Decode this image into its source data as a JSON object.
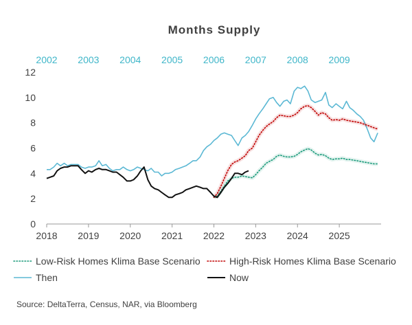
{
  "chart_data": {
    "type": "line",
    "title": "Months Supply",
    "source": "Source: DeltaTerra, Census, NAR, via Bloomberg",
    "ylim": [
      0,
      12
    ],
    "yticks": [
      "0",
      "2",
      "4",
      "6",
      "8",
      "10",
      "12"
    ],
    "xlim": [
      2018,
      2026
    ],
    "xticks": [
      "2018",
      "2019",
      "2020",
      "2021",
      "2022",
      "2023",
      "2024",
      "2025"
    ],
    "top_xticks": [
      "2002",
      "2003",
      "2004",
      "2005",
      "2006",
      "2007",
      "2008",
      "2009"
    ],
    "legend_placement": "bottom",
    "grid": false,
    "colors": {
      "then": "#5bb8d4",
      "low_risk": "#1a9a7a",
      "high_risk": "#c00000",
      "now": "#111111",
      "axis": "#999999",
      "top_axis": "#3fb6c9"
    },
    "series": [
      {
        "name": "Low-Risk Homes Klima Base Scenario",
        "key": "low_risk",
        "style": "dotted",
        "x": [
          2022.0,
          2022.08,
          2022.17,
          2022.25,
          2022.33,
          2022.42,
          2022.5,
          2022.58,
          2022.67,
          2022.75,
          2022.83,
          2022.92,
          2023.0,
          2023.08,
          2023.17,
          2023.25,
          2023.33,
          2023.42,
          2023.5,
          2023.58,
          2023.67,
          2023.75,
          2023.83,
          2023.92,
          2024.0,
          2024.08,
          2024.17,
          2024.25,
          2024.33,
          2024.42,
          2024.5,
          2024.58,
          2024.67,
          2024.75,
          2024.83,
          2024.92,
          2025.0,
          2025.08,
          2025.17,
          2025.25,
          2025.33,
          2025.42,
          2025.5,
          2025.58,
          2025.67,
          2025.75,
          2025.83,
          2025.92
        ],
        "y": [
          2.1,
          2.2,
          2.6,
          3.0,
          3.4,
          3.6,
          3.7,
          3.7,
          3.8,
          3.75,
          3.7,
          3.65,
          3.9,
          4.2,
          4.5,
          4.8,
          4.95,
          5.1,
          5.35,
          5.45,
          5.35,
          5.3,
          5.3,
          5.35,
          5.5,
          5.7,
          5.85,
          5.95,
          5.85,
          5.6,
          5.45,
          5.5,
          5.4,
          5.2,
          5.1,
          5.15,
          5.15,
          5.2,
          5.1,
          5.1,
          5.05,
          5.0,
          4.95,
          4.9,
          4.85,
          4.8,
          4.75,
          4.75
        ]
      },
      {
        "name": "High-Risk Homes Klima Base Scenario",
        "key": "high_risk",
        "style": "dotted",
        "x": [
          2022.0,
          2022.08,
          2022.17,
          2022.25,
          2022.33,
          2022.42,
          2022.5,
          2022.58,
          2022.67,
          2022.75,
          2022.83,
          2022.92,
          2023.0,
          2023.08,
          2023.17,
          2023.25,
          2023.33,
          2023.42,
          2023.5,
          2023.58,
          2023.67,
          2023.75,
          2023.83,
          2023.92,
          2024.0,
          2024.08,
          2024.17,
          2024.25,
          2024.33,
          2024.42,
          2024.5,
          2024.58,
          2024.67,
          2024.75,
          2024.83,
          2024.92,
          2025.0,
          2025.08,
          2025.17,
          2025.25,
          2025.33,
          2025.42,
          2025.5,
          2025.58,
          2025.67,
          2025.75,
          2025.83,
          2025.92
        ],
        "y": [
          2.1,
          2.4,
          3.0,
          3.6,
          4.2,
          4.7,
          4.9,
          5.0,
          5.2,
          5.4,
          5.8,
          6.0,
          6.5,
          7.0,
          7.4,
          7.7,
          7.9,
          8.1,
          8.4,
          8.6,
          8.55,
          8.5,
          8.5,
          8.6,
          8.8,
          9.1,
          9.3,
          9.35,
          9.2,
          8.9,
          8.6,
          8.8,
          8.7,
          8.4,
          8.2,
          8.25,
          8.2,
          8.3,
          8.2,
          8.15,
          8.1,
          8.05,
          8.0,
          7.9,
          7.8,
          7.7,
          7.6,
          7.5
        ]
      },
      {
        "name": "Then",
        "key": "then",
        "style": "solid",
        "x": [
          2018.0,
          2018.08,
          2018.17,
          2018.25,
          2018.33,
          2018.42,
          2018.5,
          2018.58,
          2018.67,
          2018.75,
          2018.83,
          2018.92,
          2019.0,
          2019.08,
          2019.17,
          2019.25,
          2019.33,
          2019.42,
          2019.5,
          2019.58,
          2019.67,
          2019.75,
          2019.83,
          2019.92,
          2020.0,
          2020.08,
          2020.17,
          2020.25,
          2020.33,
          2020.42,
          2020.5,
          2020.58,
          2020.67,
          2020.75,
          2020.83,
          2020.92,
          2021.0,
          2021.08,
          2021.17,
          2021.25,
          2021.33,
          2021.42,
          2021.5,
          2021.58,
          2021.67,
          2021.75,
          2021.83,
          2021.92,
          2022.0,
          2022.08,
          2022.17,
          2022.25,
          2022.33,
          2022.42,
          2022.5,
          2022.58,
          2022.67,
          2022.75,
          2022.83,
          2022.92,
          2023.0,
          2023.08,
          2023.17,
          2023.25,
          2023.33,
          2023.42,
          2023.5,
          2023.58,
          2023.67,
          2023.75,
          2023.83,
          2023.92,
          2024.0,
          2024.08,
          2024.17,
          2024.25,
          2024.33,
          2024.42,
          2024.5,
          2024.58,
          2024.67,
          2024.75,
          2024.83,
          2024.92,
          2025.0,
          2025.08,
          2025.17,
          2025.25,
          2025.33,
          2025.42,
          2025.5,
          2025.58,
          2025.67,
          2025.75,
          2025.83,
          2025.92
        ],
        "y": [
          4.3,
          4.3,
          4.5,
          4.8,
          4.6,
          4.8,
          4.6,
          4.7,
          4.7,
          4.7,
          4.5,
          4.4,
          4.5,
          4.5,
          4.6,
          5.0,
          4.6,
          4.7,
          4.4,
          4.2,
          4.3,
          4.3,
          4.5,
          4.3,
          4.2,
          4.3,
          4.5,
          4.4,
          4.3,
          4.2,
          4.4,
          4.1,
          4.1,
          3.8,
          4.0,
          4.0,
          4.1,
          4.3,
          4.4,
          4.5,
          4.6,
          4.8,
          5.0,
          5.0,
          5.3,
          5.8,
          6.1,
          6.3,
          6.6,
          6.8,
          7.1,
          7.2,
          7.1,
          7.0,
          6.6,
          6.2,
          6.8,
          7.0,
          7.3,
          7.8,
          8.3,
          8.7,
          9.1,
          9.5,
          9.9,
          10.0,
          9.6,
          9.3,
          9.7,
          9.8,
          9.5,
          10.5,
          10.8,
          10.7,
          10.9,
          10.5,
          9.8,
          9.6,
          9.7,
          9.8,
          10.4,
          9.4,
          9.2,
          9.5,
          9.3,
          9.1,
          9.7,
          9.2,
          9.0,
          8.7,
          8.5,
          8.2,
          7.5,
          6.8,
          6.5,
          7.2
        ]
      },
      {
        "name": "Now",
        "key": "now",
        "style": "solid",
        "x": [
          2018.0,
          2018.08,
          2018.17,
          2018.25,
          2018.33,
          2018.42,
          2018.5,
          2018.58,
          2018.67,
          2018.75,
          2018.83,
          2018.92,
          2019.0,
          2019.08,
          2019.17,
          2019.25,
          2019.33,
          2019.42,
          2019.5,
          2019.58,
          2019.67,
          2019.75,
          2019.83,
          2019.92,
          2020.0,
          2020.08,
          2020.17,
          2020.25,
          2020.33,
          2020.42,
          2020.5,
          2020.58,
          2020.67,
          2020.75,
          2020.83,
          2020.92,
          2021.0,
          2021.08,
          2021.17,
          2021.25,
          2021.33,
          2021.42,
          2021.5,
          2021.58,
          2021.67,
          2021.75,
          2021.83,
          2021.92,
          2022.0,
          2022.08,
          2022.17,
          2022.25,
          2022.33,
          2022.42,
          2022.5,
          2022.58,
          2022.67,
          2022.75,
          2022.83
        ],
        "y": [
          3.6,
          3.7,
          3.8,
          4.2,
          4.4,
          4.5,
          4.5,
          4.6,
          4.6,
          4.6,
          4.3,
          4.0,
          4.2,
          4.1,
          4.3,
          4.4,
          4.3,
          4.3,
          4.2,
          4.1,
          4.1,
          3.9,
          3.7,
          3.4,
          3.4,
          3.5,
          3.8,
          4.2,
          4.5,
          3.5,
          3.0,
          2.8,
          2.7,
          2.5,
          2.3,
          2.1,
          2.1,
          2.3,
          2.4,
          2.5,
          2.7,
          2.8,
          2.9,
          3.0,
          2.9,
          2.8,
          2.8,
          2.5,
          2.2,
          2.1,
          2.5,
          2.9,
          3.2,
          3.6,
          4.0,
          4.0,
          3.9,
          4.1,
          4.2
        ]
      }
    ]
  }
}
